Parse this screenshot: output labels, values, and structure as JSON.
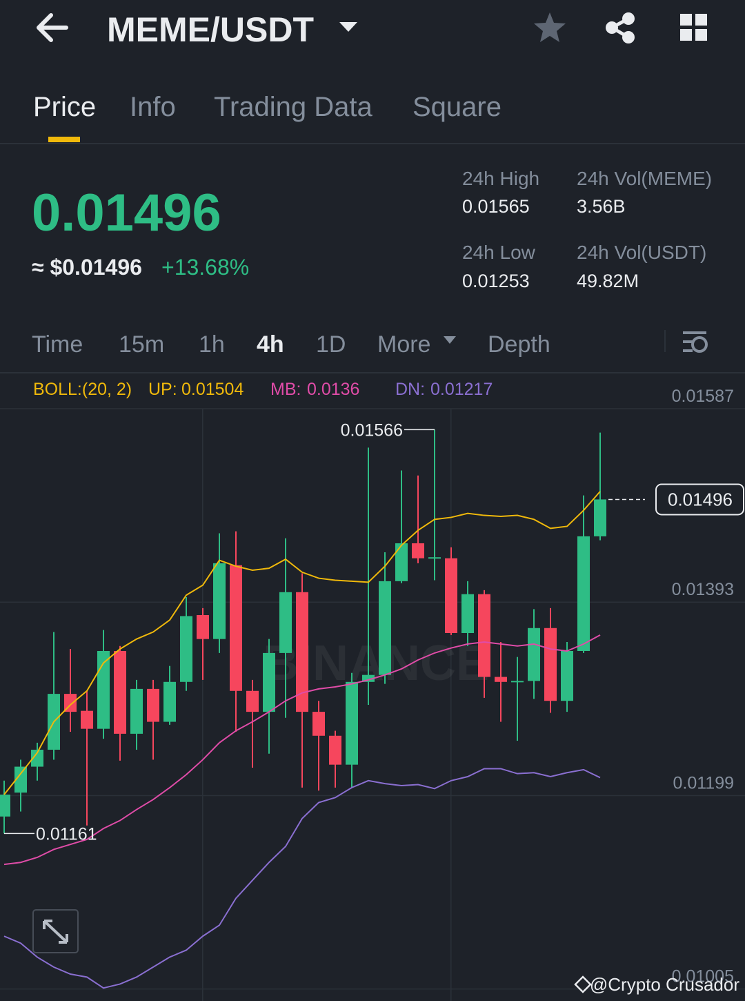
{
  "header": {
    "pair": "MEME/USDT"
  },
  "tabs": [
    "Price",
    "Info",
    "Trading Data",
    "Square"
  ],
  "ticker": {
    "price": "0.01496",
    "approx": "≈ $0.01496",
    "change": "+13.68%",
    "stats": [
      {
        "label": "24h High",
        "value": "0.01565"
      },
      {
        "label": "24h Vol(MEME)",
        "value": "3.56B"
      },
      {
        "label": "24h Low",
        "value": "0.01253"
      },
      {
        "label": "24h Vol(USDT)",
        "value": "49.82M"
      }
    ]
  },
  "timeframes": [
    "Time",
    "15m",
    "1h",
    "4h",
    "1D",
    "More",
    "Depth"
  ],
  "watermark": "BINANCE",
  "footer": "@Crypto Crusador",
  "chart_data": {
    "type": "candlestick",
    "indicator": "BOLL:(20, 2)",
    "up_color": "#2ebd85",
    "down_color": "#f6465d",
    "ylim": [
      0.00993,
      0.01587
    ],
    "yticks": [
      0.01587,
      0.01393,
      0.01199,
      0.01005
    ],
    "grid": true,
    "open": [
      0.01178,
      0.01202,
      0.01228,
      0.01245,
      0.01301,
      0.01284,
      0.01266,
      0.01344,
      0.01261,
      0.01306,
      0.01273,
      0.01313,
      0.0138,
      0.01356,
      0.0143,
      0.01304,
      0.01283,
      0.01342,
      0.01403,
      0.01283,
      0.01259,
      0.0123,
      0.01313,
      0.0132,
      0.01414,
      0.01452,
      0.01437,
      0.01437,
      0.01362,
      0.01401,
      0.01318,
      0.01313,
      0.01314,
      0.01367,
      0.01294,
      0.01344,
      0.01459
    ],
    "high": [
      0.01214,
      0.01235,
      0.01252,
      0.01363,
      0.01346,
      0.01304,
      0.01365,
      0.01349,
      0.01315,
      0.01315,
      0.01329,
      0.01398,
      0.01387,
      0.01462,
      0.01464,
      0.01315,
      0.01356,
      0.01457,
      0.01422,
      0.01294,
      0.01264,
      0.01322,
      0.01548,
      0.01443,
      0.01525,
      0.0152,
      0.01566,
      0.01448,
      0.01414,
      0.01405,
      0.01353,
      0.01338,
      0.01386,
      0.01387,
      0.01353,
      0.015,
      0.01563
    ],
    "low": [
      0.01161,
      0.01183,
      0.01214,
      0.01235,
      0.01263,
      0.01169,
      0.01256,
      0.01234,
      0.01245,
      0.01235,
      0.0127,
      0.01304,
      0.01315,
      0.01342,
      0.01263,
      0.01227,
      0.01241,
      0.01277,
      0.01207,
      0.01204,
      0.01207,
      0.01207,
      0.0129,
      0.01311,
      0.01412,
      0.01432,
      0.01415,
      0.0136,
      0.01349,
      0.01297,
      0.01273,
      0.01254,
      0.01296,
      0.01282,
      0.01283,
      0.01342,
      0.01455
    ],
    "close": [
      0.012,
      0.01228,
      0.01245,
      0.01301,
      0.01283,
      0.01266,
      0.01344,
      0.01261,
      0.01306,
      0.01273,
      0.01313,
      0.01379,
      0.01356,
      0.01432,
      0.01304,
      0.01283,
      0.01342,
      0.01403,
      0.01283,
      0.01259,
      0.0123,
      0.01313,
      0.0132,
      0.01414,
      0.01452,
      0.01437,
      0.01438,
      0.01362,
      0.01401,
      0.01318,
      0.01313,
      0.01314,
      0.01367,
      0.01294,
      0.01344,
      0.01459,
      0.01496
    ],
    "series": [
      {
        "name": "UP:",
        "color": "#f0b90b",
        "values": [
          0.012,
          0.01221,
          0.01242,
          0.01273,
          0.0129,
          0.01304,
          0.01332,
          0.01346,
          0.01356,
          0.01363,
          0.01375,
          0.014,
          0.0141,
          0.01435,
          0.01429,
          0.01425,
          0.01427,
          0.01436,
          0.01423,
          0.01417,
          0.01415,
          0.01414,
          0.01413,
          0.01429,
          0.0145,
          0.01465,
          0.01476,
          0.01478,
          0.01482,
          0.0148,
          0.01479,
          0.0148,
          0.01476,
          0.01467,
          0.01469,
          0.01485,
          0.01504
        ]
      },
      {
        "name": "MB:",
        "color": "#e04ca8",
        "values": [
          0.0113,
          0.01132,
          0.01137,
          0.01145,
          0.0115,
          0.01155,
          0.01166,
          0.01174,
          0.01185,
          0.01195,
          0.01207,
          0.0122,
          0.01235,
          0.01252,
          0.01264,
          0.01273,
          0.01283,
          0.01294,
          0.01302,
          0.01306,
          0.01308,
          0.01311,
          0.01315,
          0.0132,
          0.01326,
          0.01335,
          0.01342,
          0.01347,
          0.01351,
          0.01353,
          0.01351,
          0.01349,
          0.01351,
          0.01346,
          0.01344,
          0.01351,
          0.0136
        ]
      },
      {
        "name": "DN:",
        "color": "#8a6fd1",
        "values": [
          0.01058,
          0.01051,
          0.01037,
          0.01027,
          0.0102,
          0.01017,
          0.01006,
          0.0101,
          0.01017,
          0.01027,
          0.01037,
          0.01044,
          0.01058,
          0.01069,
          0.01096,
          0.01114,
          0.01132,
          0.01148,
          0.01176,
          0.01192,
          0.01197,
          0.01207,
          0.01214,
          0.01211,
          0.01209,
          0.0121,
          0.01206,
          0.01214,
          0.01218,
          0.01226,
          0.01226,
          0.01221,
          0.01222,
          0.01218,
          0.01222,
          0.01225,
          0.01217
        ]
      }
    ]
  }
}
